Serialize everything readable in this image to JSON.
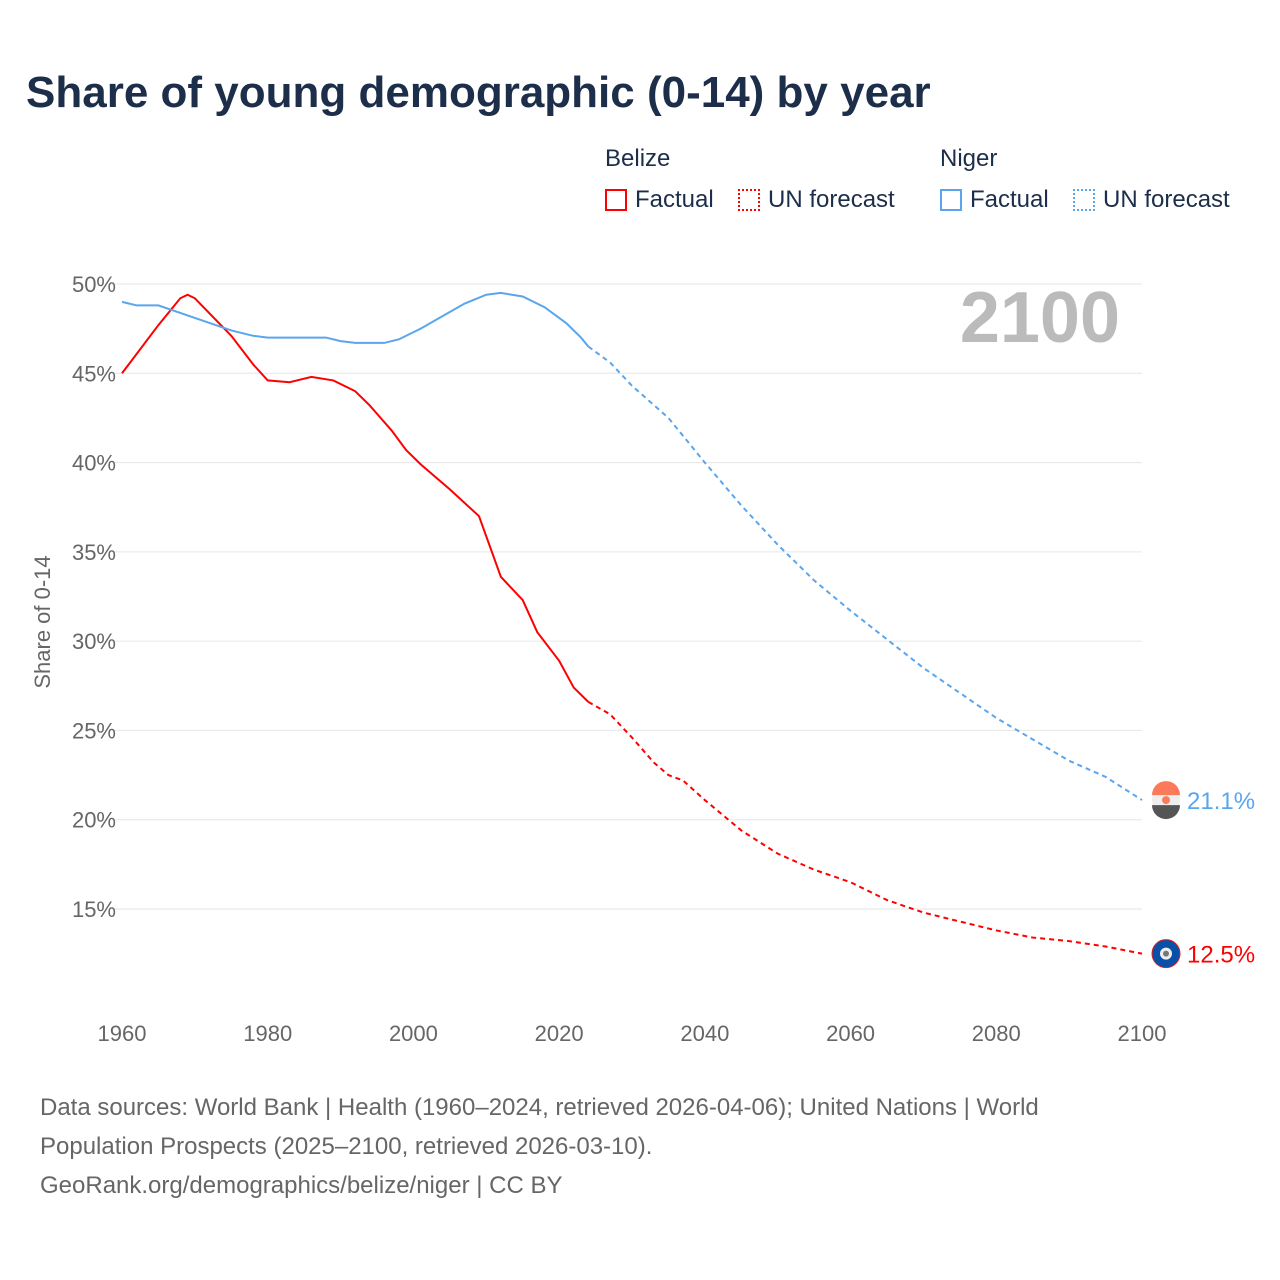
{
  "title": "Share of young demographic (0-14) by year",
  "legend": {
    "groups": [
      {
        "name": "Belize",
        "color": "#ff0000",
        "items": [
          "Factual",
          "UN forecast"
        ]
      },
      {
        "name": "Niger",
        "color": "#5aa5ec",
        "items": [
          "Factual",
          "UN forecast"
        ]
      }
    ]
  },
  "year_label": "2100",
  "footer": {
    "line1": "Data sources: World Bank | Health (1960–2024, retrieved 2026-04-06); United Nations | World",
    "line2": "Population Prospects (2025–2100, retrieved 2026-03-10).",
    "line3": "GeoRank.org/demographics/belize/niger | CC BY"
  },
  "chart_data": {
    "type": "line",
    "title": "Share of young demographic (0-14) by year",
    "xlabel": "",
    "ylabel": "Share of 0-14",
    "xlim": [
      1960,
      2100
    ],
    "ylim": [
      10,
      50
    ],
    "xticks": [
      "1960",
      "1980",
      "2000",
      "2020",
      "2040",
      "2060",
      "2080",
      "2100"
    ],
    "yticks": [
      "15%",
      "20%",
      "25%",
      "30%",
      "35%",
      "40%",
      "45%",
      "50%"
    ],
    "grid": true,
    "forecast_start": 2024,
    "series": [
      {
        "name": "Belize",
        "color": "#ff0000",
        "end_label": "12.5%",
        "flag": "belize-flag",
        "x": [
          1960,
          1965,
          1968,
          1969,
          1970,
          1975,
          1978,
          1980,
          1983,
          1986,
          1989,
          1992,
          1994,
          1997,
          1999,
          2001,
          2005,
          2009,
          2012,
          2015,
          2017,
          2020,
          2022,
          2024,
          2027,
          2030,
          2033,
          2035,
          2037,
          2040,
          2045,
          2050,
          2055,
          2060,
          2065,
          2070,
          2075,
          2080,
          2085,
          2090,
          2095,
          2100
        ],
        "y": [
          45.0,
          47.7,
          49.2,
          49.4,
          49.2,
          47.1,
          45.5,
          44.6,
          44.5,
          44.8,
          44.6,
          44.0,
          43.2,
          41.8,
          40.7,
          39.9,
          38.5,
          37.0,
          33.6,
          32.3,
          30.5,
          28.9,
          27.4,
          26.6,
          25.9,
          24.6,
          23.2,
          22.5,
          22.2,
          21.1,
          19.4,
          18.1,
          17.2,
          16.5,
          15.5,
          14.8,
          14.3,
          13.8,
          13.4,
          13.2,
          12.9,
          12.5
        ]
      },
      {
        "name": "Niger",
        "color": "#5aa5ec",
        "end_label": "21.1%",
        "flag": "niger-flag",
        "x": [
          1960,
          1962,
          1965,
          1970,
          1975,
          1978,
          1980,
          1988,
          1990,
          1992,
          1996,
          1998,
          2001,
          2004,
          2007,
          2010,
          2012,
          2015,
          2018,
          2021,
          2023,
          2024,
          2027,
          2030,
          2035,
          2040,
          2045,
          2050,
          2055,
          2060,
          2065,
          2070,
          2075,
          2080,
          2085,
          2090,
          2095,
          2100
        ],
        "y": [
          49.0,
          48.8,
          48.8,
          48.1,
          47.4,
          47.1,
          47.0,
          47.0,
          46.8,
          46.7,
          46.7,
          46.9,
          47.5,
          48.2,
          48.9,
          49.4,
          49.5,
          49.3,
          48.7,
          47.8,
          47.0,
          46.5,
          45.6,
          44.3,
          42.5,
          40.0,
          37.6,
          35.4,
          33.4,
          31.7,
          30.1,
          28.5,
          27.1,
          25.7,
          24.5,
          23.3,
          22.4,
          21.1
        ]
      }
    ]
  }
}
